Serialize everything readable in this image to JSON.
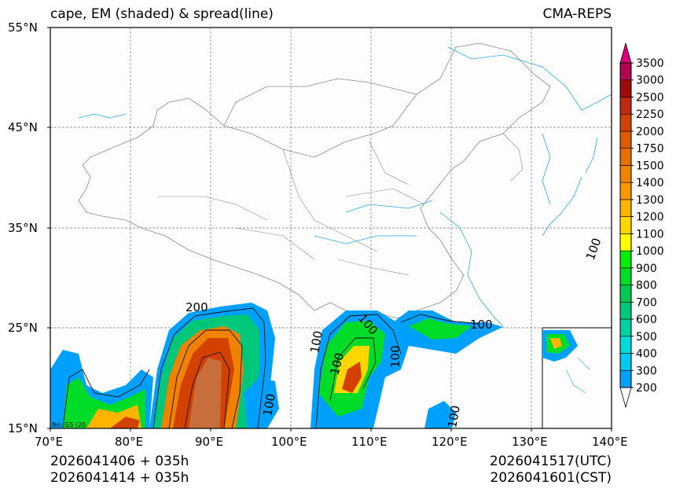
{
  "title": {
    "left": "cape, EM (shaded) & spread(line)",
    "right": "CMA-REPS"
  },
  "axes": {
    "lat_labels": [
      "55°N",
      "45°N",
      "35°N",
      "25°N",
      "15°N"
    ],
    "lon_labels": [
      "70°E",
      "80°E",
      "90°E",
      "100°E",
      "110°E",
      "120°E",
      "130°E",
      "140°E"
    ],
    "lat_range": [
      15,
      55
    ],
    "lon_range": [
      70,
      140
    ]
  },
  "footer": {
    "init_utc": "2026041406  +  035h",
    "init_cst": "2026041414  +  035h",
    "valid_utc": "2026041517(UTC)",
    "valid_cst": "2026041601(CST)"
  },
  "colorbar": {
    "levels": [
      "200",
      "300",
      "400",
      "500",
      "600",
      "700",
      "800",
      "900",
      "1000",
      "1100",
      "1200",
      "1300",
      "1400",
      "1500",
      "1750",
      "2000",
      "2250",
      "2500",
      "3000",
      "3500"
    ],
    "colors": [
      "#00a0ff",
      "#00c8f0",
      "#00dcdc",
      "#00d2a0",
      "#00c878",
      "#00c850",
      "#00dc28",
      "#00f000",
      "#ffff00",
      "#ffd700",
      "#ffb400",
      "#ff9600",
      "#f08200",
      "#e86e00",
      "#e05a00",
      "#d24100",
      "#be2814",
      "#a00a0a",
      "#b40050",
      "#dc0078"
    ]
  },
  "contour_labels": [
    "200",
    "100",
    "100",
    "100",
    "100",
    "100",
    "100",
    "100",
    "100"
  ],
  "footnote": "No: G5 (20"
}
